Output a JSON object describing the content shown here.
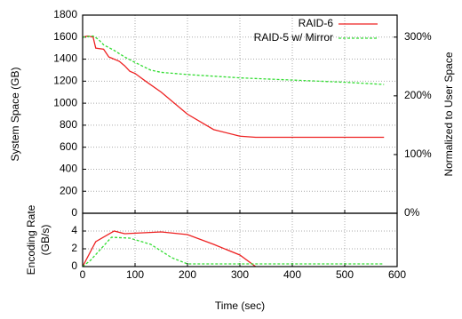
{
  "chart_data": [
    {
      "type": "line",
      "ylabel": "System Space (GB)",
      "y2label": "Normalized to User Space",
      "xlim": [
        0,
        600
      ],
      "ylim": [
        0,
        1800
      ],
      "yticks": [
        0,
        200,
        400,
        600,
        800,
        1000,
        1200,
        1400,
        1600,
        1800
      ],
      "y2lim": [
        0,
        337.5
      ],
      "y2ticks": [
        {
          "value": 0,
          "label": "0%"
        },
        {
          "value": 100,
          "label": "100%"
        },
        {
          "value": 200,
          "label": "200%"
        },
        {
          "value": 300,
          "label": "300%"
        }
      ],
      "grid": true,
      "legend": "upper right",
      "series": [
        {
          "name": "RAID-6",
          "color": "#ee2222",
          "dash": false,
          "x": [
            0,
            10,
            20,
            25,
            40,
            50,
            70,
            80,
            90,
            100,
            120,
            150,
            200,
            250,
            300,
            330,
            400,
            500,
            575
          ],
          "values": [
            1600,
            1610,
            1600,
            1500,
            1490,
            1420,
            1380,
            1340,
            1290,
            1270,
            1200,
            1100,
            900,
            760,
            700,
            690,
            690,
            690,
            690
          ]
        },
        {
          "name": "RAID-5 w/ Mirror",
          "color": "#33dd33",
          "dash": true,
          "x": [
            0,
            20,
            30,
            40,
            60,
            80,
            100,
            130,
            150,
            200,
            300,
            400,
            500,
            575
          ],
          "values": [
            1600,
            1610,
            1580,
            1530,
            1480,
            1420,
            1370,
            1300,
            1280,
            1260,
            1230,
            1210,
            1190,
            1170
          ]
        }
      ]
    },
    {
      "type": "line",
      "ylabel": [
        "Encoding Rate",
        "(GB/s)"
      ],
      "xlabel": "Time (sec)",
      "xlim": [
        0,
        600
      ],
      "xticks": [
        0,
        100,
        200,
        300,
        400,
        500,
        600
      ],
      "ylim": [
        0,
        6
      ],
      "yticks": [
        0,
        2,
        4
      ],
      "grid": true,
      "series": [
        {
          "color": "#ee2222",
          "dash": false,
          "x": [
            0,
            25,
            60,
            80,
            150,
            200,
            250,
            300,
            330
          ],
          "values": [
            0,
            2.8,
            4,
            3.7,
            3.9,
            3.6,
            2.5,
            1.3,
            0
          ]
        },
        {
          "color": "#33dd33",
          "dash": true,
          "x": [
            0,
            15,
            35,
            55,
            90,
            130,
            170,
            200,
            300,
            575
          ],
          "values": [
            0,
            0.7,
            2,
            3.3,
            3.2,
            2.5,
            1,
            0.3,
            0.3,
            0.3
          ]
        }
      ]
    }
  ]
}
